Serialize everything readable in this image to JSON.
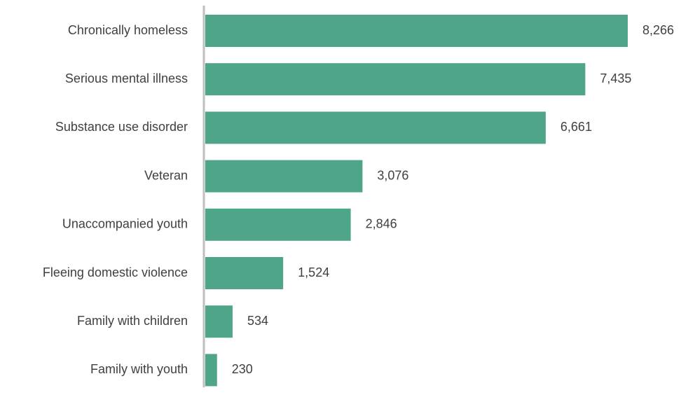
{
  "chart_data": {
    "type": "bar",
    "orientation": "horizontal",
    "categories": [
      "Chronically homeless",
      "Serious mental illness",
      "Substance use disorder",
      "Veteran",
      "Unaccompanied youth",
      "Fleeing domestic violence",
      "Family with children",
      "Family with youth"
    ],
    "values": [
      8266,
      7435,
      6661,
      3076,
      2846,
      1524,
      534,
      230
    ],
    "data_labels": [
      "8,266",
      "7,435",
      "6,661",
      "3,076",
      "2,846",
      "1,524",
      "534",
      "230"
    ],
    "title": "",
    "xlabel": "",
    "ylabel": "",
    "xlim": [
      0,
      8266
    ],
    "grid": false,
    "legend": "none",
    "colors": {
      "bar": "#4fa58a",
      "axis": "#bfbfbf",
      "label_text": "#404040"
    }
  }
}
